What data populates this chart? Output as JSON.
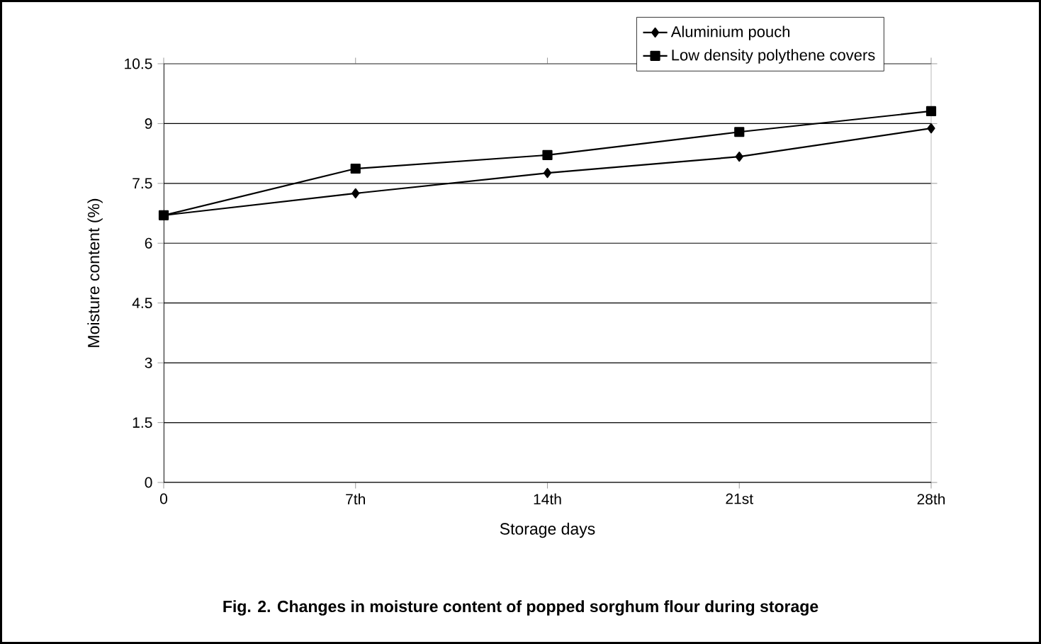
{
  "chart_data": {
    "type": "line",
    "title": "**Fig. 2. Changes in moisture content of popped sorghum flour during storage**",
    "xlabel": "Storage days",
    "ylabel": "Moisture content (%)",
    "categories": [
      "0",
      "7th",
      "14th",
      "21st",
      "28th"
    ],
    "series": [
      {
        "name": "Aluminium pouch",
        "color": "#000000",
        "marker": "diamond",
        "values": [
          6.7,
          7.25,
          7.76,
          8.17,
          8.88
        ]
      },
      {
        "name": "Low density polythene covers",
        "color": "#000000",
        "marker": "square",
        "values": [
          6.7,
          7.87,
          8.21,
          8.79,
          9.31
        ]
      }
    ],
    "ylim": [
      0,
      10.5
    ],
    "yticks": [
      0,
      1.5,
      3,
      4.5,
      6,
      7.5,
      9,
      10.5
    ],
    "grid": "y",
    "legend": "top right",
    "line_style": "solid"
  }
}
